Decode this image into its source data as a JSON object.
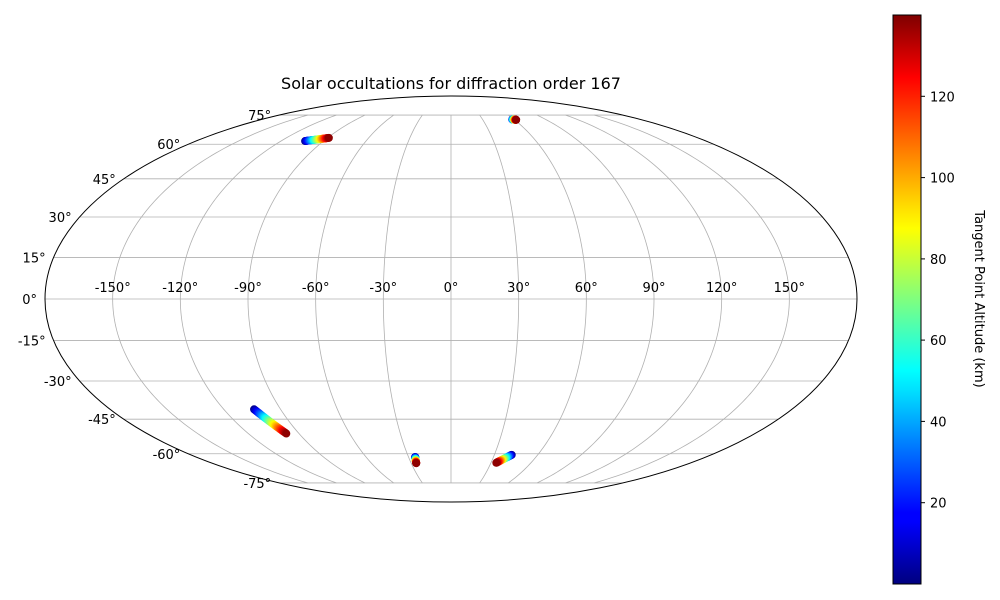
{
  "chart_data": {
    "type": "scatter",
    "projection": "mollweide",
    "title": "Solar occultations for diffraction order 167",
    "xlabel": "",
    "ylabel": "",
    "grid": true,
    "x_ticks": [
      "-150°",
      "-120°",
      "-90°",
      "-60°",
      "-30°",
      "0°",
      "30°",
      "60°",
      "90°",
      "120°",
      "150°"
    ],
    "y_ticks": [
      "-75°",
      "-60°",
      "-45°",
      "-30°",
      "-15°",
      "0°",
      "15°",
      "30°",
      "45°",
      "60°",
      "75°"
    ],
    "colorbar": {
      "label": "Tangent Point Altitude (km)",
      "colormap": "jet",
      "range": [
        0,
        140
      ],
      "ticks": [
        "20",
        "40",
        "60",
        "80",
        "100",
        "120"
      ]
    },
    "series": [
      {
        "lon_start": -103,
        "lat_start": 61.5,
        "lon_end": -89,
        "lat_end": 63.0,
        "alt_start": 2,
        "alt_end": 138
      },
      {
        "lon_start": 58.2,
        "lat_start": 72.5,
        "lon_end": 61.5,
        "lat_end": 72.3,
        "alt_start": 20,
        "alt_end": 138
      },
      {
        "lon_start": -104,
        "lat_start": -41.0,
        "lon_end": -97.5,
        "lat_end": -51.0,
        "alt_start": 2,
        "alt_end": 138
      },
      {
        "lon_start": -25.3,
        "lat_start": -61.5,
        "lon_end": -26.2,
        "lat_end": -64.5,
        "alt_start": 2,
        "alt_end": 138
      },
      {
        "lon_start": 42.0,
        "lat_start": -60.5,
        "lon_end": 34.0,
        "lat_end": -64.3,
        "alt_start": 2,
        "alt_end": 138
      }
    ]
  }
}
